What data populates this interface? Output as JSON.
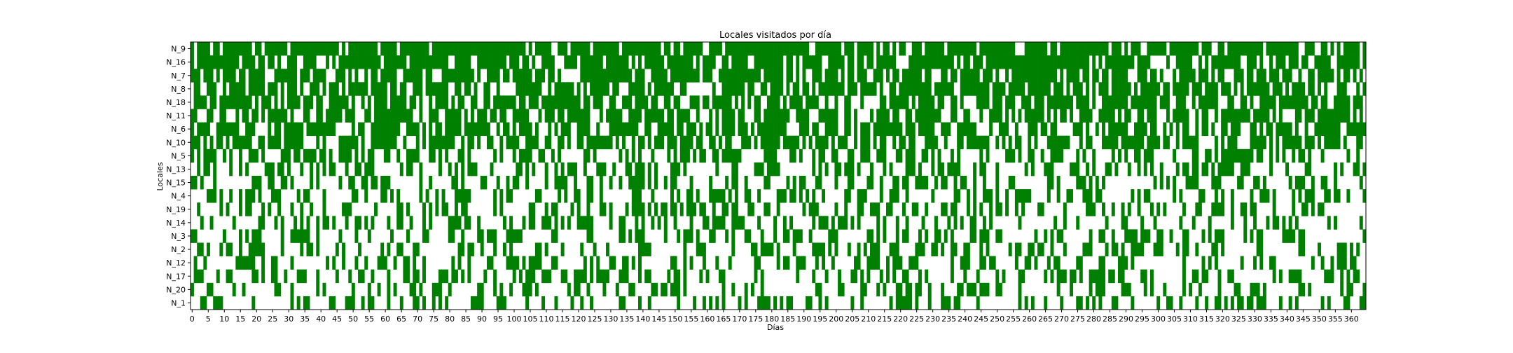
{
  "chart_data": {
    "type": "heatmap",
    "title": "Locales visitados por día",
    "xlabel": "Días",
    "ylabel": "Locales",
    "cell_color": "#008000",
    "background_color": "#ffffff",
    "x_range": [
      0,
      364
    ],
    "x_tick_step": 5,
    "x_ticks": [
      0,
      5,
      10,
      15,
      20,
      25,
      30,
      35,
      40,
      45,
      50,
      55,
      60,
      65,
      70,
      75,
      80,
      85,
      90,
      95,
      100,
      105,
      110,
      115,
      120,
      125,
      130,
      135,
      140,
      145,
      150,
      155,
      160,
      165,
      170,
      175,
      180,
      185,
      190,
      195,
      200,
      205,
      210,
      215,
      220,
      225,
      230,
      235,
      240,
      245,
      250,
      255,
      260,
      265,
      270,
      275,
      280,
      285,
      290,
      295,
      300,
      305,
      310,
      315,
      320,
      325,
      330,
      335,
      340,
      345,
      350,
      355,
      360
    ],
    "rows": [
      "N_9",
      "N_16",
      "N_7",
      "N_8",
      "N_18",
      "N_11",
      "N_6",
      "N_10",
      "N_5",
      "N_13",
      "N_15",
      "N_4",
      "N_19",
      "N_14",
      "N_3",
      "N_2",
      "N_12",
      "N_17",
      "N_20",
      "N_1"
    ],
    "approx_visit_rate_by_row": {
      "N_9": 0.82,
      "N_16": 0.78,
      "N_7": 0.74,
      "N_8": 0.72,
      "N_18": 0.7,
      "N_11": 0.68,
      "N_6": 0.66,
      "N_10": 0.64,
      "N_5": 0.4,
      "N_13": 0.38,
      "N_15": 0.37,
      "N_4": 0.36,
      "N_19": 0.35,
      "N_14": 0.34,
      "N_3": 0.33,
      "N_2": 0.33,
      "N_12": 0.32,
      "N_17": 0.32,
      "N_20": 0.31,
      "N_1": 0.3
    },
    "grid": false,
    "legend": "none"
  }
}
